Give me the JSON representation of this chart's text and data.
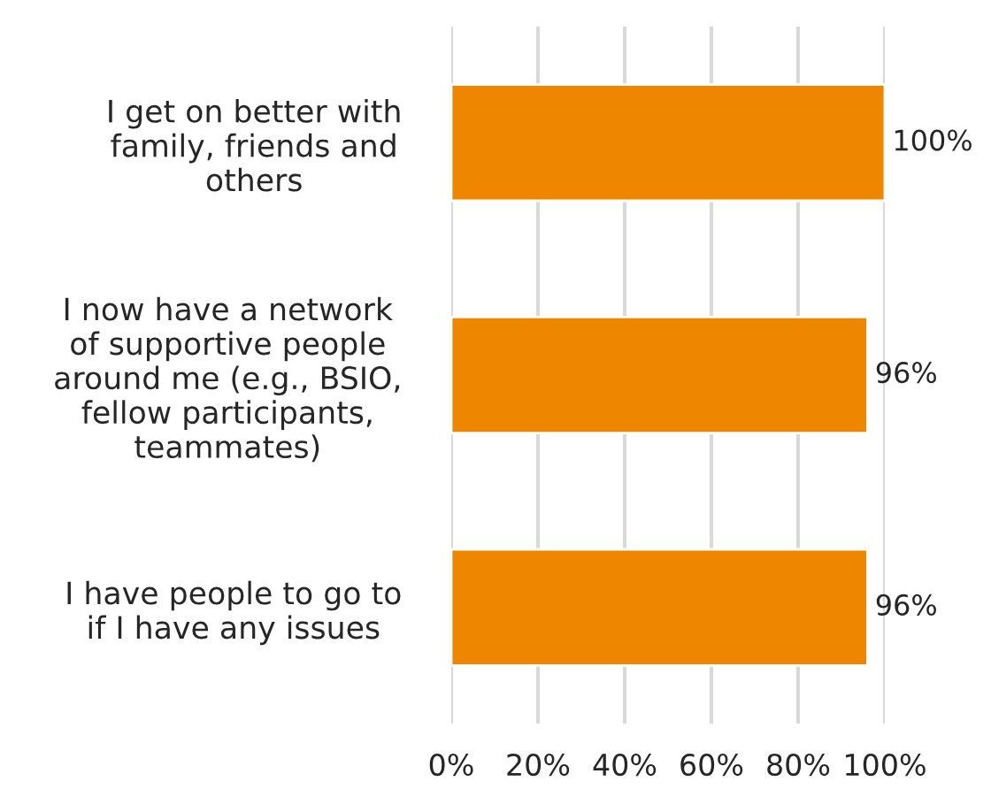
{
  "chart_data": {
    "type": "bar",
    "orientation": "horizontal",
    "categories": [
      "I get on better with\nfamily, friends and\nothers",
      "I now have a network\nof supportive people\naround me (e.g., BSIO,\nfellow participants,\nteammates)",
      "I have people to go to\nif I have any issues"
    ],
    "values": [
      100,
      96,
      96
    ],
    "color": "#ee8600",
    "value_labels": [
      "100%",
      "96%",
      "96%"
    ],
    "xlim": [
      0,
      100
    ],
    "xticks": [
      {
        "value": 0,
        "label": "0%"
      },
      {
        "value": 20,
        "label": "20%"
      },
      {
        "value": 40,
        "label": "40%"
      },
      {
        "value": 60,
        "label": "60%"
      },
      {
        "value": 80,
        "label": "80%"
      },
      {
        "value": 100,
        "label": "100%"
      }
    ],
    "grid": "x",
    "legend": false
  }
}
